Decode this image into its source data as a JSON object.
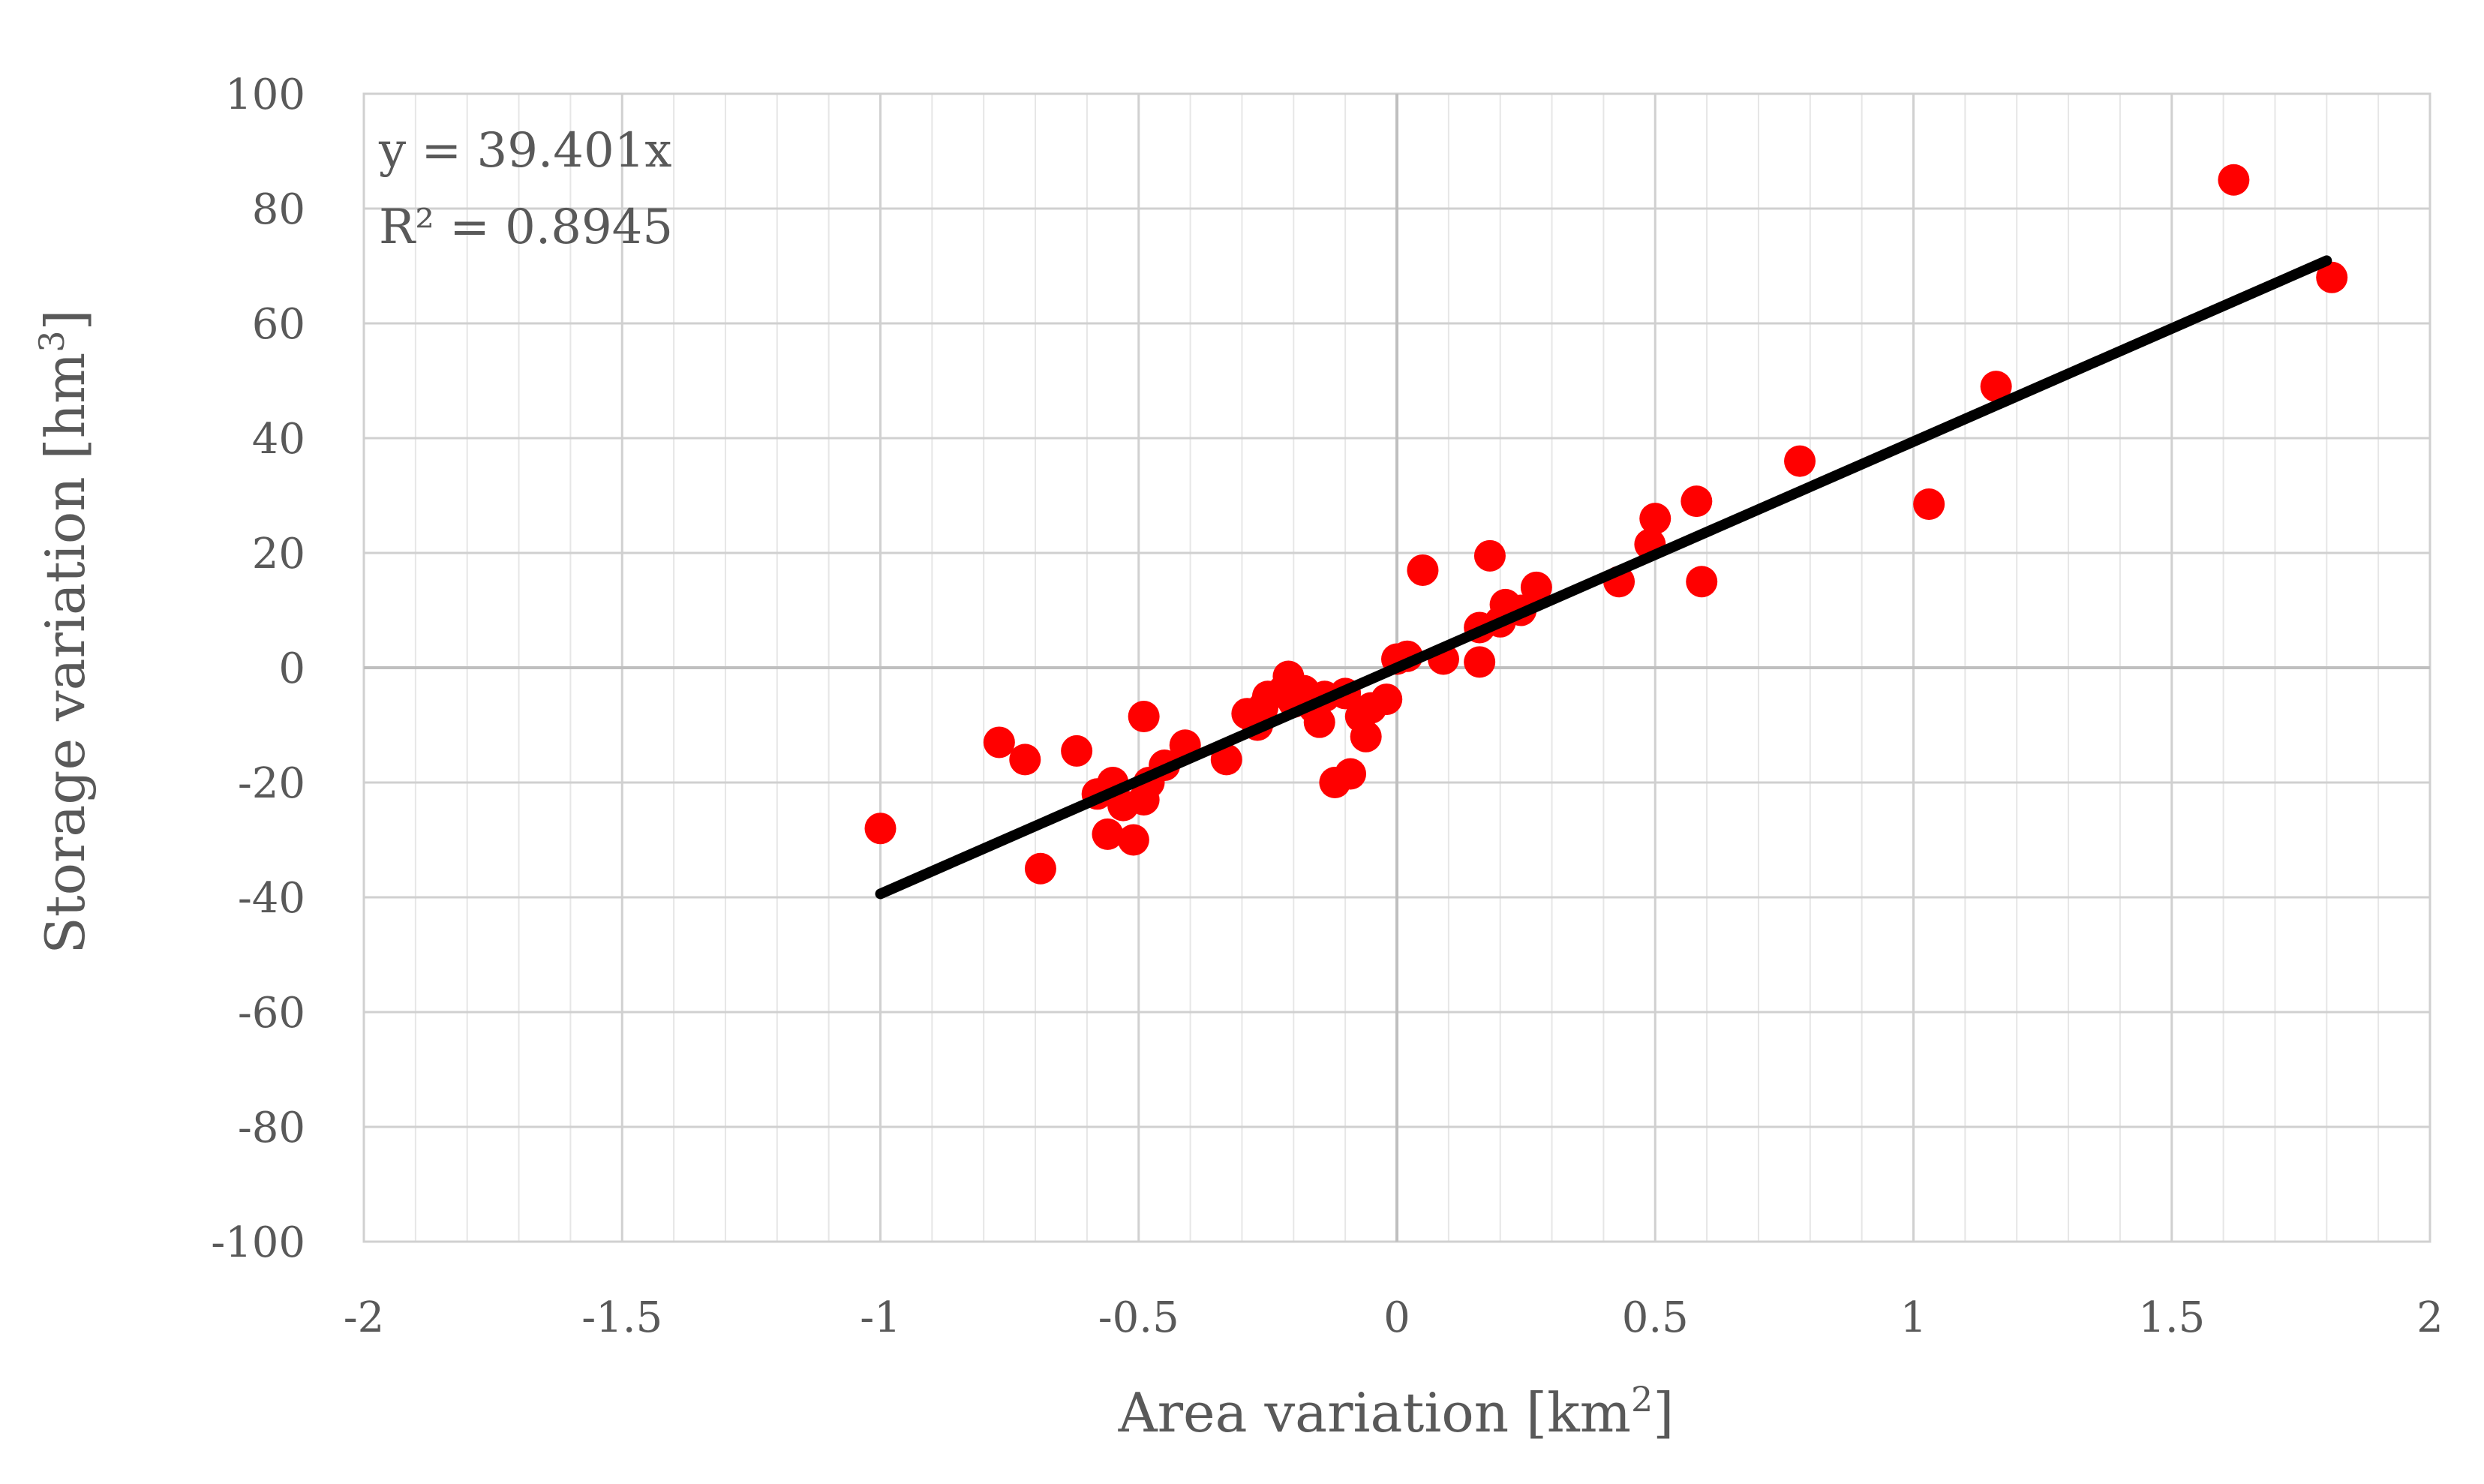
{
  "chart_data": {
    "type": "scatter",
    "xlabel": "Area variation [km",
    "xlabel_sup": "2",
    "xlabel_suffix": "]",
    "ylabel": "Storage variation [hm",
    "ylabel_sup": "3",
    "ylabel_suffix": "]",
    "xlim": [
      -2,
      2
    ],
    "ylim": [
      -100,
      100
    ],
    "x_ticks": [
      -2,
      -1.5,
      -1,
      -0.5,
      0,
      0.5,
      1,
      1.5,
      2
    ],
    "x_tick_labels": [
      "-2",
      "-1.5",
      "-1",
      "-0.5",
      "0",
      "0.5",
      "1",
      "1.5",
      "2"
    ],
    "y_ticks": [
      -100,
      -80,
      -60,
      -40,
      -20,
      0,
      20,
      40,
      60,
      80,
      100
    ],
    "y_tick_labels": [
      "-100",
      "-80",
      "-60",
      "-40",
      "-20",
      "0",
      "20",
      "40",
      "60",
      "80",
      "100"
    ],
    "x_minor_step": 0.1,
    "grid": true,
    "annotations": {
      "equation": "y = 39.401x",
      "r_squared": "R² = 0.8945"
    },
    "trendline": {
      "slope": 39.401,
      "x_start": -1,
      "x_end": 1.8,
      "color": "#000000"
    },
    "marker_color": "#ff0000",
    "series": [
      {
        "points": [
          [
            -1.0,
            -28
          ],
          [
            -0.77,
            -13
          ],
          [
            -0.72,
            -16
          ],
          [
            -0.69,
            -35
          ],
          [
            -0.62,
            -14.5
          ],
          [
            -0.58,
            -22
          ],
          [
            -0.56,
            -29
          ],
          [
            -0.55,
            -20
          ],
          [
            -0.53,
            -24
          ],
          [
            -0.51,
            -30
          ],
          [
            -0.49,
            -23
          ],
          [
            -0.48,
            -20
          ],
          [
            -0.49,
            -8.5
          ],
          [
            -0.45,
            -17
          ],
          [
            -0.41,
            -13.5
          ],
          [
            -0.33,
            -16
          ],
          [
            -0.29,
            -8
          ],
          [
            -0.27,
            -10
          ],
          [
            -0.26,
            -7
          ],
          [
            -0.25,
            -5
          ],
          [
            -0.22,
            -4
          ],
          [
            -0.21,
            -1.5
          ],
          [
            -0.2,
            -6
          ],
          [
            -0.18,
            -4
          ],
          [
            -0.16,
            -7
          ],
          [
            -0.15,
            -9.5
          ],
          [
            -0.14,
            -5
          ],
          [
            -0.12,
            -20
          ],
          [
            -0.1,
            -4.5
          ],
          [
            -0.09,
            -18.5
          ],
          [
            -0.07,
            -8.5
          ],
          [
            -0.06,
            -12
          ],
          [
            -0.05,
            -7
          ],
          [
            -0.02,
            -5.5
          ],
          [
            0.0,
            1.5
          ],
          [
            0.02,
            2
          ],
          [
            0.05,
            17
          ],
          [
            0.09,
            1.5
          ],
          [
            0.16,
            7
          ],
          [
            0.16,
            1
          ],
          [
            0.18,
            19.5
          ],
          [
            0.2,
            8
          ],
          [
            0.21,
            11
          ],
          [
            0.24,
            10
          ],
          [
            0.27,
            14
          ],
          [
            0.43,
            15
          ],
          [
            0.49,
            21.5
          ],
          [
            0.5,
            26
          ],
          [
            0.58,
            29
          ],
          [
            0.59,
            15
          ],
          [
            0.78,
            36
          ],
          [
            1.03,
            28.5
          ],
          [
            1.16,
            49
          ],
          [
            1.62,
            85
          ],
          [
            1.81,
            68
          ]
        ]
      }
    ]
  }
}
